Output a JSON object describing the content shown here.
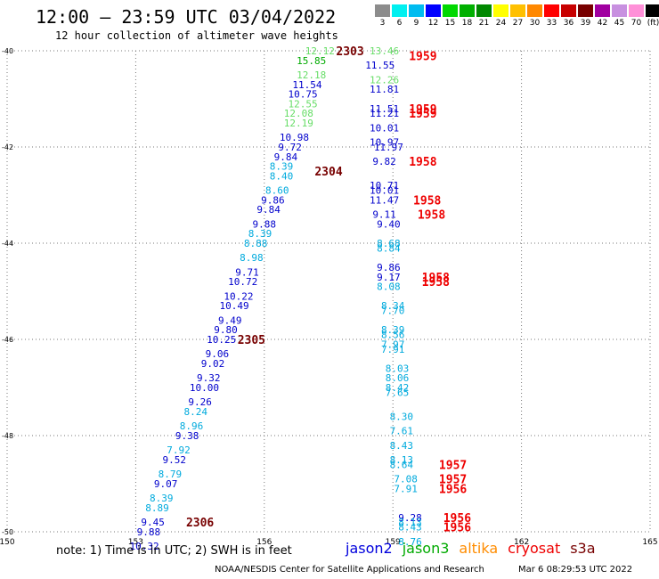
{
  "title": "12:00 – 23:59 UTC 03/04/2022",
  "subtitle": "12 hour collection of altimeter wave heights",
  "color_scale": {
    "labels": [
      "3",
      "6",
      "9",
      "12",
      "15",
      "18",
      "21",
      "24",
      "27",
      "30",
      "33",
      "36",
      "39",
      "42",
      "45",
      "70",
      "(ft)"
    ],
    "colors": [
      "#8c8c8c",
      "#00f0f0",
      "#00bcf0",
      "#0000ff",
      "#00d800",
      "#00b000",
      "#008800",
      "#ffff00",
      "#ffc000",
      "#ff8800",
      "#ff0000",
      "#c80000",
      "#780000",
      "#a000a0",
      "#c890e0",
      "#ff90d8",
      "#000000"
    ]
  },
  "note": "note:  1) Time is in UTC;  2) SWH is in feet",
  "missions": [
    {
      "name": "jason2",
      "color": "#0000dd"
    },
    {
      "name": "jason3",
      "color": "#00aa00"
    },
    {
      "name": "altika",
      "color": "#ff8c00"
    },
    {
      "name": "cryosat",
      "color": "#ee0000"
    },
    {
      "name": "s3a",
      "color": "#770000"
    }
  ],
  "credit": "NOAA/NESDIS Center for Satellite Applications and Research",
  "credit_time": "Mar  6 08:29:53 UTC 2022",
  "chart_data": {
    "type": "scatter",
    "x_axis": {
      "ticks": [
        "150",
        "153",
        "156",
        "159",
        "162",
        "165"
      ],
      "range": [
        150,
        165
      ]
    },
    "y_axis": {
      "ticks": [
        "-40",
        "-42",
        "-44",
        "-46",
        "-48",
        "-50"
      ],
      "range": [
        -50,
        -40
      ]
    },
    "grid": true,
    "points": [
      {
        "lon": 157.3,
        "lat": -40.0,
        "label": "12.12",
        "color": "#66dd66"
      },
      {
        "lon": 157.1,
        "lat": -40.2,
        "label": "15.85",
        "color": "#00aa00"
      },
      {
        "lon": 157.1,
        "lat": -40.5,
        "label": "12.18",
        "color": "#66dd66"
      },
      {
        "lon": 157.0,
        "lat": -40.7,
        "label": "11.54",
        "color": "#0000cc"
      },
      {
        "lon": 156.9,
        "lat": -40.9,
        "label": "10.75",
        "color": "#0000cc"
      },
      {
        "lon": 156.9,
        "lat": -41.1,
        "label": "12.55",
        "color": "#66dd66"
      },
      {
        "lon": 156.8,
        "lat": -41.3,
        "label": "12.08",
        "color": "#66dd66"
      },
      {
        "lon": 156.8,
        "lat": -41.5,
        "label": "12.19",
        "color": "#66dd66"
      },
      {
        "lon": 156.7,
        "lat": -41.8,
        "label": "10.98",
        "color": "#0000cc"
      },
      {
        "lon": 156.6,
        "lat": -42.0,
        "label": "9.72",
        "color": "#0000cc"
      },
      {
        "lon": 156.5,
        "lat": -42.2,
        "label": "9.84",
        "color": "#0000cc"
      },
      {
        "lon": 156.4,
        "lat": -42.4,
        "label": "8.39",
        "color": "#00aadd"
      },
      {
        "lon": 156.4,
        "lat": -42.6,
        "label": "8.40",
        "color": "#00aadd"
      },
      {
        "lon": 156.3,
        "lat": -42.9,
        "label": "8.60",
        "color": "#00aadd"
      },
      {
        "lon": 156.2,
        "lat": -43.1,
        "label": "9.86",
        "color": "#0000cc"
      },
      {
        "lon": 156.1,
        "lat": -43.3,
        "label": "9.84",
        "color": "#0000cc"
      },
      {
        "lon": 156.0,
        "lat": -43.6,
        "label": "9.88",
        "color": "#0000cc"
      },
      {
        "lon": 155.9,
        "lat": -43.8,
        "label": "8.39",
        "color": "#00aadd"
      },
      {
        "lon": 155.8,
        "lat": -44.0,
        "label": "8.88",
        "color": "#00aadd"
      },
      {
        "lon": 155.7,
        "lat": -44.3,
        "label": "8.98",
        "color": "#00aadd"
      },
      {
        "lon": 155.6,
        "lat": -44.6,
        "label": "9.71",
        "color": "#0000cc"
      },
      {
        "lon": 155.5,
        "lat": -44.8,
        "label": "10.72",
        "color": "#0000cc"
      },
      {
        "lon": 155.4,
        "lat": -45.1,
        "label": "10.22",
        "color": "#0000cc"
      },
      {
        "lon": 155.3,
        "lat": -45.3,
        "label": "10.49",
        "color": "#0000cc"
      },
      {
        "lon": 155.2,
        "lat": -45.6,
        "label": "9.49",
        "color": "#0000cc"
      },
      {
        "lon": 155.1,
        "lat": -45.8,
        "label": "9.80",
        "color": "#0000cc"
      },
      {
        "lon": 155.0,
        "lat": -46.0,
        "label": "10.25",
        "color": "#0000cc"
      },
      {
        "lon": 154.9,
        "lat": -46.3,
        "label": "9.06",
        "color": "#0000cc"
      },
      {
        "lon": 154.8,
        "lat": -46.5,
        "label": "9.02",
        "color": "#0000cc"
      },
      {
        "lon": 154.7,
        "lat": -46.8,
        "label": "9.32",
        "color": "#0000cc"
      },
      {
        "lon": 154.6,
        "lat": -47.0,
        "label": "10.00",
        "color": "#0000cc"
      },
      {
        "lon": 154.5,
        "lat": -47.3,
        "label": "9.26",
        "color": "#0000cc"
      },
      {
        "lon": 154.4,
        "lat": -47.5,
        "label": "8.24",
        "color": "#00aadd"
      },
      {
        "lon": 154.3,
        "lat": -47.8,
        "label": "8.96",
        "color": "#00aadd"
      },
      {
        "lon": 154.2,
        "lat": -48.0,
        "label": "9.38",
        "color": "#0000cc"
      },
      {
        "lon": 154.0,
        "lat": -48.3,
        "label": "7.92",
        "color": "#00aadd"
      },
      {
        "lon": 153.9,
        "lat": -48.5,
        "label": "9.52",
        "color": "#0000cc"
      },
      {
        "lon": 153.8,
        "lat": -48.8,
        "label": "8.79",
        "color": "#00aadd"
      },
      {
        "lon": 153.7,
        "lat": -49.0,
        "label": "9.07",
        "color": "#0000cc"
      },
      {
        "lon": 153.6,
        "lat": -49.3,
        "label": "8.39",
        "color": "#00aadd"
      },
      {
        "lon": 153.5,
        "lat": -49.5,
        "label": "8.89",
        "color": "#00aadd"
      },
      {
        "lon": 153.4,
        "lat": -49.8,
        "label": "9.45",
        "color": "#0000cc"
      },
      {
        "lon": 153.3,
        "lat": -50.0,
        "label": "9.88",
        "color": "#0000cc"
      },
      {
        "lon": 153.2,
        "lat": -50.3,
        "label": "10.32",
        "color": "#0000cc"
      },
      {
        "lon": 158.8,
        "lat": -40.0,
        "label": "13.46",
        "color": "#66dd66"
      },
      {
        "lon": 158.7,
        "lat": -40.3,
        "label": "11.55",
        "color": "#0000cc"
      },
      {
        "lon": 158.8,
        "lat": -40.6,
        "label": "12.26",
        "color": "#66dd66"
      },
      {
        "lon": 158.8,
        "lat": -40.8,
        "label": "11.81",
        "color": "#0000cc"
      },
      {
        "lon": 158.8,
        "lat": -41.2,
        "label": "11.51",
        "color": "#0000cc"
      },
      {
        "lon": 158.8,
        "lat": -41.3,
        "label": "11.21",
        "color": "#0000cc"
      },
      {
        "lon": 158.8,
        "lat": -41.6,
        "label": "10.01",
        "color": "#0000cc"
      },
      {
        "lon": 158.8,
        "lat": -41.9,
        "label": "10.97",
        "color": "#0000cc"
      },
      {
        "lon": 158.9,
        "lat": -42.0,
        "label": "11.97",
        "color": "#0000cc"
      },
      {
        "lon": 158.8,
        "lat": -42.3,
        "label": "9.82",
        "color": "#0000cc"
      },
      {
        "lon": 158.8,
        "lat": -42.8,
        "label": "10.71",
        "color": "#0000cc"
      },
      {
        "lon": 158.8,
        "lat": -42.9,
        "label": "10.01",
        "color": "#0000cc"
      },
      {
        "lon": 158.8,
        "lat": -43.1,
        "label": "11.47",
        "color": "#0000cc"
      },
      {
        "lon": 158.8,
        "lat": -43.4,
        "label": "9.11",
        "color": "#0000cc"
      },
      {
        "lon": 158.9,
        "lat": -43.6,
        "label": "9.40",
        "color": "#0000cc"
      },
      {
        "lon": 158.9,
        "lat": -44.0,
        "label": "8.68",
        "color": "#00aadd"
      },
      {
        "lon": 158.9,
        "lat": -44.1,
        "label": "8.84",
        "color": "#00aadd"
      },
      {
        "lon": 158.9,
        "lat": -44.5,
        "label": "9.86",
        "color": "#0000cc"
      },
      {
        "lon": 158.9,
        "lat": -44.7,
        "label": "9.17",
        "color": "#0000cc"
      },
      {
        "lon": 158.9,
        "lat": -44.9,
        "label": "8.08",
        "color": "#00aadd"
      },
      {
        "lon": 159.0,
        "lat": -45.3,
        "label": "8.34",
        "color": "#00aadd"
      },
      {
        "lon": 159.0,
        "lat": -45.4,
        "label": "7.70",
        "color": "#00aadd"
      },
      {
        "lon": 159.0,
        "lat": -45.8,
        "label": "8.39",
        "color": "#00aadd"
      },
      {
        "lon": 159.0,
        "lat": -45.9,
        "label": "8.56",
        "color": "#00aadd"
      },
      {
        "lon": 159.0,
        "lat": -46.1,
        "label": "7.97",
        "color": "#00aadd"
      },
      {
        "lon": 159.0,
        "lat": -46.2,
        "label": "7.91",
        "color": "#00aadd"
      },
      {
        "lon": 159.1,
        "lat": -46.6,
        "label": "8.03",
        "color": "#00aadd"
      },
      {
        "lon": 159.1,
        "lat": -46.8,
        "label": "8.06",
        "color": "#00aadd"
      },
      {
        "lon": 159.1,
        "lat": -47.0,
        "label": "8.42",
        "color": "#00aadd"
      },
      {
        "lon": 159.1,
        "lat": -47.1,
        "label": "7.65",
        "color": "#00aadd"
      },
      {
        "lon": 159.2,
        "lat": -47.6,
        "label": "8.30",
        "color": "#00aadd"
      },
      {
        "lon": 159.2,
        "lat": -47.9,
        "label": "7.61",
        "color": "#00aadd"
      },
      {
        "lon": 159.2,
        "lat": -48.2,
        "label": "8.43",
        "color": "#00aadd"
      },
      {
        "lon": 159.2,
        "lat": -48.5,
        "label": "8.13",
        "color": "#00aadd"
      },
      {
        "lon": 159.2,
        "lat": -48.6,
        "label": "8.64",
        "color": "#00aadd"
      },
      {
        "lon": 159.3,
        "lat": -48.9,
        "label": "7.08",
        "color": "#00aadd"
      },
      {
        "lon": 159.3,
        "lat": -49.1,
        "label": "7.91",
        "color": "#00aadd"
      },
      {
        "lon": 159.4,
        "lat": -49.7,
        "label": "9.28",
        "color": "#0000cc"
      },
      {
        "lon": 159.4,
        "lat": -49.8,
        "label": "8.13",
        "color": "#00aadd"
      },
      {
        "lon": 159.4,
        "lat": -49.9,
        "label": "8.43",
        "color": "#00aadd"
      },
      {
        "lon": 159.4,
        "lat": -50.2,
        "label": "8.76",
        "color": "#00aadd"
      }
    ],
    "time_labels": [
      {
        "lon": 158.0,
        "lat": -40.0,
        "label": "2303",
        "color": "#770000"
      },
      {
        "lon": 157.5,
        "lat": -42.5,
        "label": "2304",
        "color": "#770000"
      },
      {
        "lon": 155.7,
        "lat": -46.0,
        "label": "2305",
        "color": "#770000"
      },
      {
        "lon": 154.5,
        "lat": -49.8,
        "label": "2306",
        "color": "#770000"
      },
      {
        "lon": 159.7,
        "lat": -40.1,
        "label": "1959",
        "color": "#ee0000"
      },
      {
        "lon": 159.7,
        "lat": -41.2,
        "label": "1959",
        "color": "#ee0000"
      },
      {
        "lon": 159.7,
        "lat": -41.3,
        "label": "1959",
        "color": "#ee0000"
      },
      {
        "lon": 159.7,
        "lat": -42.3,
        "label": "1958",
        "color": "#ee0000"
      },
      {
        "lon": 159.8,
        "lat": -43.1,
        "label": "1958",
        "color": "#ee0000"
      },
      {
        "lon": 159.9,
        "lat": -43.4,
        "label": "1958",
        "color": "#ee0000"
      },
      {
        "lon": 160.0,
        "lat": -44.7,
        "label": "1958",
        "color": "#ee0000"
      },
      {
        "lon": 160.0,
        "lat": -44.8,
        "label": "1958",
        "color": "#ee0000"
      },
      {
        "lon": 160.4,
        "lat": -48.6,
        "label": "1957",
        "color": "#ee0000"
      },
      {
        "lon": 160.4,
        "lat": -48.9,
        "label": "1957",
        "color": "#ee0000"
      },
      {
        "lon": 160.4,
        "lat": -49.1,
        "label": "1956",
        "color": "#ee0000"
      },
      {
        "lon": 160.5,
        "lat": -49.7,
        "label": "1956",
        "color": "#ee0000"
      },
      {
        "lon": 160.5,
        "lat": -49.9,
        "label": "1956",
        "color": "#ee0000"
      }
    ]
  }
}
